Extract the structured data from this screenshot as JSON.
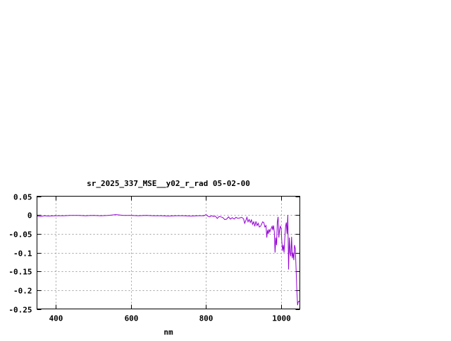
{
  "chart_data": {
    "type": "line",
    "title": "sr_2025_337_MSE__y02_r_rad 05-02-00",
    "xlabel": "nm",
    "ylabel": "",
    "xlim": [
      350,
      1050
    ],
    "ylim": [
      -0.25,
      0.05
    ],
    "xticks": [
      400,
      600,
      800,
      1000
    ],
    "xtick_labels": [
      "400",
      "600",
      "800",
      "1000"
    ],
    "yticks": [
      0.05,
      0,
      -0.05,
      -0.1,
      -0.15,
      -0.2,
      -0.25
    ],
    "ytick_labels": [
      "0.05",
      "0",
      "-0.05",
      "-0.1",
      "-0.15",
      "-0.2",
      "-0.25"
    ],
    "grid": true,
    "series": [
      {
        "color": "#9400d3",
        "x": [
          350,
          360,
          370,
          380,
          400,
          420,
          440,
          460,
          480,
          500,
          520,
          540,
          560,
          580,
          600,
          620,
          640,
          660,
          680,
          700,
          720,
          740,
          760,
          780,
          795,
          800,
          805,
          810,
          815,
          820,
          825,
          830,
          835,
          840,
          845,
          850,
          855,
          860,
          865,
          870,
          875,
          880,
          885,
          890,
          895,
          900,
          903,
          906,
          909,
          912,
          915,
          918,
          921,
          924,
          927,
          930,
          933,
          936,
          939,
          942,
          945,
          948,
          951,
          954,
          957,
          960,
          962,
          964,
          966,
          968,
          970,
          972,
          974,
          976,
          978,
          980,
          982,
          984,
          986,
          988,
          990,
          992,
          994,
          996,
          998,
          1000,
          1002,
          1004,
          1006,
          1008,
          1010,
          1012,
          1014,
          1016,
          1018,
          1020,
          1022,
          1024,
          1026,
          1028,
          1030,
          1032,
          1034,
          1036,
          1038,
          1040,
          1042,
          1044,
          1046,
          1048,
          1050
        ],
        "y": [
          -0.003,
          -0.004,
          -0.002,
          -0.003,
          -0.002,
          -0.002,
          -0.001,
          -0.001,
          -0.002,
          -0.001,
          -0.002,
          -0.001,
          0.001,
          -0.001,
          -0.001,
          -0.002,
          -0.001,
          -0.002,
          -0.002,
          -0.003,
          -0.002,
          -0.002,
          -0.003,
          -0.002,
          -0.002,
          0.001,
          -0.003,
          -0.005,
          -0.002,
          -0.004,
          -0.003,
          -0.009,
          -0.004,
          -0.005,
          -0.007,
          -0.012,
          -0.011,
          -0.005,
          -0.011,
          -0.007,
          -0.011,
          -0.006,
          -0.009,
          -0.008,
          -0.006,
          -0.01,
          -0.022,
          -0.015,
          -0.006,
          -0.018,
          -0.012,
          -0.02,
          -0.013,
          -0.025,
          -0.018,
          -0.03,
          -0.017,
          -0.028,
          -0.022,
          -0.032,
          -0.03,
          -0.025,
          -0.018,
          -0.02,
          -0.032,
          -0.028,
          -0.06,
          -0.04,
          -0.05,
          -0.038,
          -0.045,
          -0.04,
          -0.035,
          -0.03,
          -0.04,
          -0.028,
          -0.045,
          -0.1,
          -0.06,
          -0.08,
          -0.02,
          -0.005,
          -0.06,
          -0.04,
          -0.03,
          -0.035,
          -0.07,
          -0.095,
          -0.08,
          -0.1,
          -0.06,
          -0.03,
          -0.02,
          -0.05,
          0.0,
          -0.145,
          -0.06,
          -0.1,
          -0.11,
          -0.058,
          -0.115,
          -0.1,
          -0.12,
          -0.08,
          -0.09,
          -0.145,
          -0.2,
          -0.24,
          -0.23,
          -0.23,
          -0.23
        ]
      }
    ]
  }
}
